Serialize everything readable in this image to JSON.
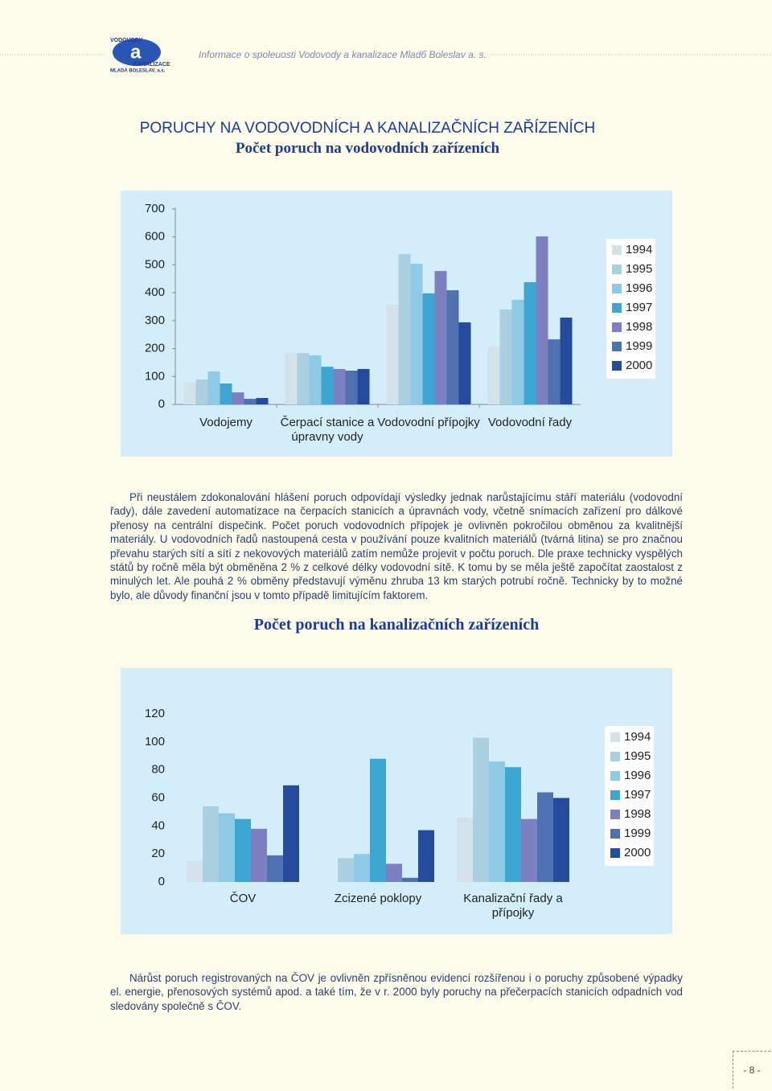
{
  "header": {
    "logo": {
      "top": "VODOVODY",
      "bottom": "KANALIZACE",
      "place": "MLADÁ BOLESLAV, a.s."
    },
    "text": "Informace o spoleuosti Vodovody a kanalizace Mladб Boleslav a. s."
  },
  "title": "PORUCHY NA VODOVODNÍCH A KANALIZAČNÍCH ZAŘÍZENÍCH",
  "sections": [
    {
      "heading": "Počet poruch na vodovodních zařízeních",
      "paragraph": "Při neustálem zdokonalování hlášení poruch odpovídají výsledky jednak narůstajícímu stáří materiálu (vodovodní řady), dále zavedení automatizace na čerpacích stanicích a úpravnách vody, včetně snímacích zařízení pro dálkové přenosy na centrální dispečink. Počet poruch vodovodních přípojek je ovlivněn pokročilou obměnou za kvalitnější materiály. U vodovodních řadů nastoupená cesta v používání pouze kvalitních materiálů (tvárná litina) se pro značnou převahu starých sítí a sítí z nekovových materiálů zatím nemůže projevit v počtu poruch. Dle praxe technicky vyspělých států by ročně měla být obměněna 2 % z celkové délky vodovodní sítě. K tomu by se měla ještě započítat zaostalost z minulých let. Ale pouhá 2 % obměny představují výměnu zhruba 13 km starých potrubí ročně. Technicky by to možné bylo, ale důvody finanční jsou v tomto případě limitujícím faktorem."
    },
    {
      "heading": "Počet poruch na kanalizačních zařízeních",
      "paragraph": "Nárůst poruch registrovaných na ČOV je ovlivněn zpřísněnou evidencí rozšířenou i o poruchy způsobené výpadky el. energie, přenosových systémů apod. a také tím, že v r. 2000 byly poruchy na přečerpacích stanicích odpadních vod sledovány společně s ČOV."
    }
  ],
  "chart_data": [
    {
      "type": "bar",
      "categories": [
        "Vodojemy",
        "Čerpací stanice a úpravny vody",
        "Vodovodní přípojky",
        "Vodovodní řady"
      ],
      "ylim": [
        0,
        700
      ],
      "yticks": [
        0,
        100,
        200,
        300,
        400,
        500,
        600,
        700
      ],
      "legend": "right",
      "series": [
        {
          "name": "1994",
          "color": "#d3e2ea",
          "values": [
            78,
            184,
            357,
            207
          ]
        },
        {
          "name": "1995",
          "color": "#a9cfe0",
          "values": [
            89,
            184,
            539,
            340
          ]
        },
        {
          "name": "1996",
          "color": "#8ecae6",
          "values": [
            118,
            176,
            504,
            375
          ]
        },
        {
          "name": "1997",
          "color": "#3ea6d3",
          "values": [
            75,
            135,
            398,
            438
          ]
        },
        {
          "name": "1998",
          "color": "#7c80c1",
          "values": [
            43,
            127,
            478,
            602
          ]
        },
        {
          "name": "1999",
          "color": "#4f71af",
          "values": [
            20,
            121,
            409,
            233
          ]
        },
        {
          "name": "2000",
          "color": "#254b9d",
          "values": [
            23,
            127,
            294,
            311
          ]
        }
      ]
    },
    {
      "type": "bar",
      "categories": [
        "ČOV",
        "Zcizené poklopy",
        "Kanalizační řady a přípojky"
      ],
      "ylim": [
        0,
        120
      ],
      "yticks": [
        0,
        20,
        40,
        60,
        80,
        100,
        120
      ],
      "legend": "right",
      "series": [
        {
          "name": "1994",
          "color": "#d3e2ea",
          "values": [
            15,
            null,
            46
          ]
        },
        {
          "name": "1995",
          "color": "#a9cfe0",
          "values": [
            54,
            17,
            103
          ]
        },
        {
          "name": "1996",
          "color": "#8ecae6",
          "values": [
            49,
            20,
            86
          ]
        },
        {
          "name": "1997",
          "color": "#3ea6d3",
          "values": [
            45,
            88,
            82
          ]
        },
        {
          "name": "1998",
          "color": "#7c80c1",
          "values": [
            38,
            13,
            45
          ]
        },
        {
          "name": "1999",
          "color": "#4f71af",
          "values": [
            19,
            3,
            64
          ]
        },
        {
          "name": "2000",
          "color": "#254b9d",
          "values": [
            69,
            37,
            60
          ]
        }
      ]
    }
  ],
  "page_number": "- 8 -"
}
